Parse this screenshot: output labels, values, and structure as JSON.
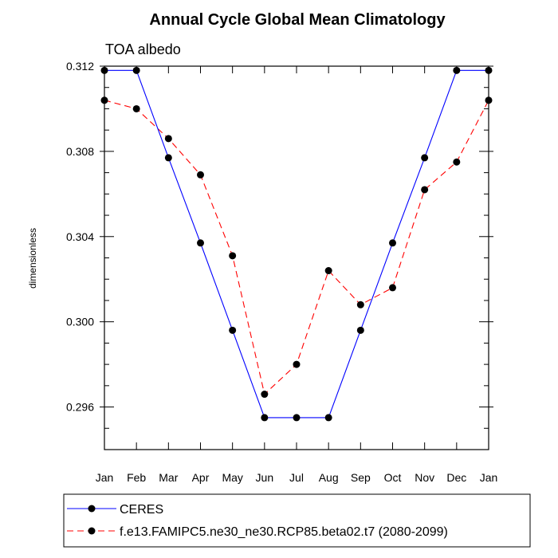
{
  "chart_data": {
    "type": "line",
    "title": "Annual Cycle Global Mean Climatology",
    "subtitle": "TOA albedo",
    "xlabel": "",
    "ylabel": "dimensionless",
    "categories": [
      "Jan",
      "Feb",
      "Mar",
      "Apr",
      "May",
      "Jun",
      "Jul",
      "Aug",
      "Sep",
      "Oct",
      "Nov",
      "Dec",
      "Jan"
    ],
    "ylim": [
      0.294,
      0.312
    ],
    "yticks": [
      "0.312",
      "0.308",
      "0.304",
      "0.300",
      "0.296"
    ],
    "ytick_values": [
      0.312,
      0.308,
      0.304,
      0.3,
      0.296
    ],
    "series": [
      {
        "name": "CERES",
        "color": "#0000ff",
        "style": "solid",
        "marker": "circle",
        "values": [
          0.3118,
          0.3118,
          0.3077,
          0.3037,
          0.2996,
          0.2955,
          0.2955,
          0.2955,
          0.2996,
          0.3037,
          0.3077,
          0.3118,
          0.3118
        ]
      },
      {
        "name": "f.e13.FAMIPC5.ne30_ne30.RCP85.beta02.t7 (2080-2099)",
        "color": "#ff0000",
        "style": "dashed",
        "marker": "circle",
        "values": [
          0.3104,
          0.31,
          0.3086,
          0.3069,
          0.3031,
          0.2966,
          0.298,
          0.3024,
          0.3008,
          0.3016,
          0.3062,
          0.3075,
          0.3104
        ]
      }
    ],
    "grid": false,
    "legend_position": "bottom"
  }
}
